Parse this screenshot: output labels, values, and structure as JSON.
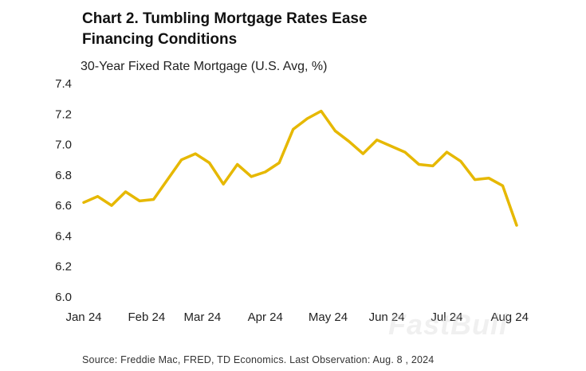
{
  "header": {
    "title_line1": "Chart 2. Tumbling Mortgage Rates Ease",
    "title_line2": "Financing Conditions"
  },
  "footer": {
    "source": "Source: Freddie Mac, FRED, TD Economics. Last Observation: Aug. 8 , 2024"
  },
  "watermark": "FastBull",
  "chart_data": {
    "type": "line",
    "title": "Chart 2. Tumbling Mortgage Rates Ease Financing Conditions",
    "subtitle": "30-Year Fixed Rate Mortgage (U.S. Avg, %)",
    "xlabel": "",
    "ylabel": "30-Year Fixed Rate Mortgage (U.S. Avg, %)",
    "ylim": [
      6.0,
      7.4
    ],
    "yticks": [
      "6.0",
      "6.2",
      "6.4",
      "6.6",
      "6.8",
      "7.0",
      "7.2",
      "7.4"
    ],
    "grid": false,
    "legend": "none",
    "color": "#E6B800",
    "x_ticks": [
      {
        "label": "Jan 24",
        "week": 0
      },
      {
        "label": "Feb 24",
        "week": 4.5
      },
      {
        "label": "Mar 24",
        "week": 8.5
      },
      {
        "label": "Apr 24",
        "week": 13
      },
      {
        "label": "May 24",
        "week": 17.5
      },
      {
        "label": "Jun 24",
        "week": 21.7
      },
      {
        "label": "Jul 24",
        "week": 26
      },
      {
        "label": "Aug 24",
        "week": 30.5
      }
    ],
    "series": [
      {
        "name": "30-Year Fixed Rate Mortgage",
        "dates": [
          "Jan 4",
          "Jan 11",
          "Jan 18",
          "Jan 25",
          "Feb 1",
          "Feb 8",
          "Feb 15",
          "Feb 22",
          "Feb 29",
          "Mar 7",
          "Mar 14",
          "Mar 21",
          "Mar 28",
          "Apr 4",
          "Apr 11",
          "Apr 18",
          "Apr 25",
          "May 2",
          "May 9",
          "May 16",
          "May 23",
          "May 30",
          "Jun 6",
          "Jun 13",
          "Jun 20",
          "Jun 27",
          "Jul 3",
          "Jul 11",
          "Jul 18",
          "Jul 25",
          "Aug 1",
          "Aug 8"
        ],
        "values": [
          6.62,
          6.66,
          6.6,
          6.69,
          6.63,
          6.64,
          6.77,
          6.9,
          6.94,
          6.88,
          6.74,
          6.87,
          6.79,
          6.82,
          6.88,
          7.1,
          7.17,
          7.22,
          7.09,
          7.02,
          6.94,
          7.03,
          6.99,
          6.95,
          6.87,
          6.86,
          6.95,
          6.89,
          6.77,
          6.78,
          6.73,
          6.47
        ]
      }
    ]
  }
}
